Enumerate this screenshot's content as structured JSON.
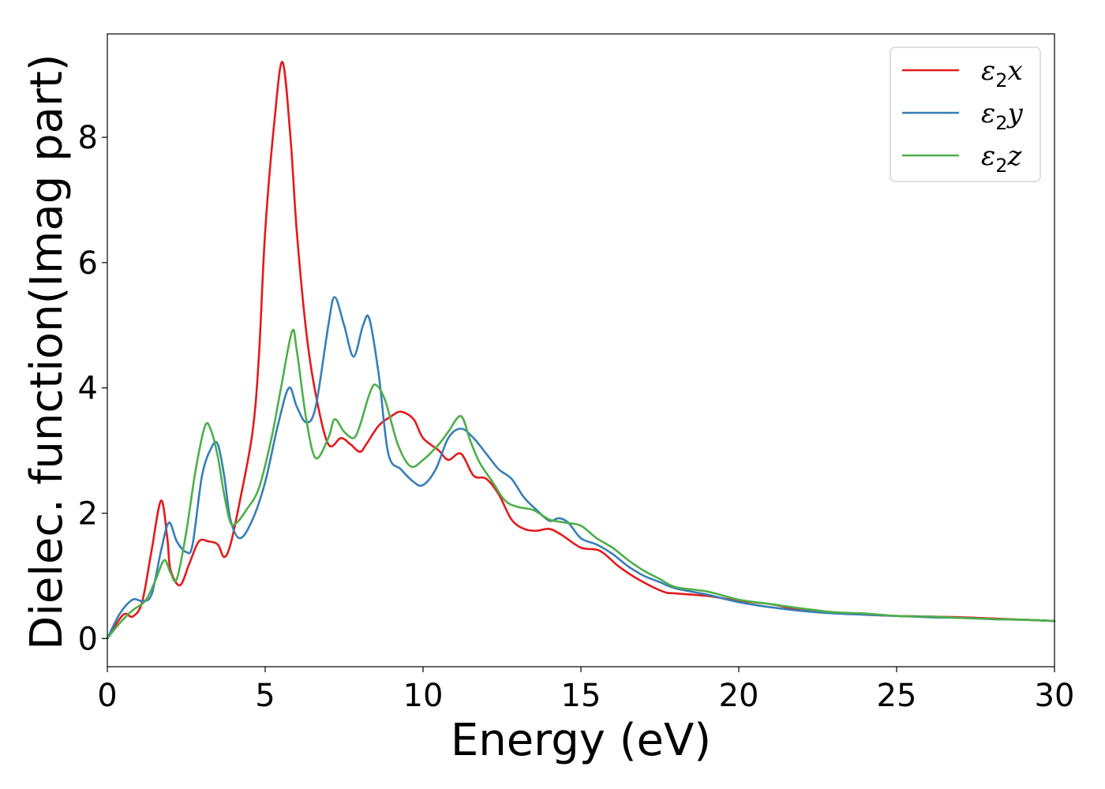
{
  "chart_data": {
    "type": "line",
    "title": "",
    "xlabel": "Energy (eV)",
    "ylabel": "Dielec. function(Imag part)",
    "xlim": [
      0,
      30
    ],
    "ylim": [
      -0.45,
      9.65
    ],
    "xticks": [
      0,
      5,
      10,
      15,
      20,
      25,
      30
    ],
    "yticks": [
      0,
      2,
      4,
      6,
      8
    ],
    "grid": false,
    "legend_position": "top-right",
    "series": [
      {
        "name": "ε2x",
        "color": "#e41a1c",
        "x": [
          0,
          0.5,
          0.8,
          1.1,
          1.4,
          1.7,
          1.9,
          2.0,
          2.3,
          2.6,
          2.9,
          3.2,
          3.5,
          3.7,
          3.9,
          4.2,
          4.6,
          4.8,
          5.0,
          5.3,
          5.55,
          5.8,
          6.0,
          6.3,
          6.6,
          7.0,
          7.4,
          7.7,
          8.0,
          8.2,
          8.6,
          9.0,
          9.3,
          9.7,
          10.0,
          10.5,
          10.8,
          11.2,
          11.6,
          12.0,
          12.4,
          12.8,
          13.2,
          13.6,
          14.0,
          14.4,
          15.0,
          15.6,
          16.2,
          16.8,
          17.6,
          18.0,
          19.0,
          20.0,
          21.0,
          22.0,
          23.0,
          24.0,
          25.0,
          26.0,
          27.0,
          28.0,
          29.0,
          30.0
        ],
        "y": [
          0,
          0.38,
          0.35,
          0.58,
          1.4,
          2.2,
          1.6,
          1.1,
          0.85,
          1.2,
          1.55,
          1.55,
          1.5,
          1.3,
          1.5,
          2.2,
          3.3,
          4.5,
          6.5,
          8.3,
          9.2,
          8.0,
          6.5,
          4.9,
          3.9,
          3.1,
          3.2,
          3.1,
          2.98,
          3.1,
          3.4,
          3.55,
          3.62,
          3.5,
          3.2,
          3.0,
          2.85,
          2.95,
          2.6,
          2.55,
          2.3,
          1.9,
          1.75,
          1.72,
          1.75,
          1.65,
          1.45,
          1.4,
          1.15,
          0.95,
          0.75,
          0.72,
          0.68,
          0.6,
          0.55,
          0.45,
          0.42,
          0.38,
          0.36,
          0.35,
          0.34,
          0.32,
          0.3,
          0.28
        ]
      },
      {
        "name": "ε2y",
        "color": "#377eb8",
        "x": [
          0,
          0.4,
          0.8,
          1.1,
          1.4,
          1.7,
          1.95,
          2.2,
          2.5,
          2.7,
          3.0,
          3.3,
          3.5,
          3.7,
          3.9,
          4.2,
          4.6,
          5.0,
          5.4,
          5.75,
          6.0,
          6.3,
          6.6,
          7.0,
          7.2,
          7.5,
          7.8,
          8.1,
          8.3,
          8.6,
          8.9,
          9.3,
          9.7,
          10.0,
          10.4,
          10.8,
          11.2,
          11.6,
          12.0,
          12.4,
          12.8,
          13.2,
          13.6,
          14.0,
          14.3,
          14.6,
          15.0,
          15.5,
          16.0,
          16.5,
          17.0,
          17.5,
          18.0,
          19.0,
          20.0,
          21.0,
          22.0,
          23.0,
          24.0,
          25.0,
          26.0,
          27.0,
          28.0,
          29.0,
          30.0
        ],
        "y": [
          0,
          0.4,
          0.62,
          0.6,
          0.7,
          1.4,
          1.85,
          1.55,
          1.38,
          1.5,
          2.6,
          3.05,
          3.1,
          2.6,
          1.9,
          1.6,
          1.9,
          2.5,
          3.4,
          4.0,
          3.7,
          3.45,
          3.7,
          5.0,
          5.45,
          5.0,
          4.5,
          5.0,
          5.1,
          4.2,
          2.95,
          2.7,
          2.5,
          2.45,
          2.7,
          3.2,
          3.35,
          3.2,
          2.95,
          2.7,
          2.55,
          2.25,
          2.05,
          1.88,
          1.92,
          1.85,
          1.6,
          1.5,
          1.35,
          1.15,
          1.0,
          0.9,
          0.8,
          0.7,
          0.58,
          0.5,
          0.44,
          0.4,
          0.38,
          0.36,
          0.34,
          0.33,
          0.31,
          0.3,
          0.28
        ]
      },
      {
        "name": "ε2z",
        "color": "#4daf4a",
        "x": [
          0,
          0.4,
          0.8,
          1.2,
          1.5,
          1.8,
          2.0,
          2.2,
          2.5,
          2.8,
          3.1,
          3.3,
          3.5,
          3.7,
          3.9,
          4.1,
          4.4,
          4.8,
          5.2,
          5.5,
          5.85,
          6.0,
          6.3,
          6.6,
          7.0,
          7.2,
          7.5,
          7.8,
          8.0,
          8.3,
          8.5,
          8.8,
          9.2,
          9.6,
          10.0,
          10.5,
          10.8,
          11.2,
          11.5,
          11.8,
          12.2,
          12.6,
          13.0,
          13.5,
          14.0,
          14.5,
          15.0,
          15.5,
          16.0,
          16.5,
          17.0,
          17.5,
          18.0,
          19.0,
          20.0,
          21.0,
          22.0,
          23.0,
          24.0,
          25.0,
          26.0,
          27.0,
          28.0,
          29.0,
          30.0
        ],
        "y": [
          0,
          0.25,
          0.45,
          0.6,
          0.9,
          1.25,
          1.05,
          0.95,
          1.7,
          2.7,
          3.4,
          3.3,
          2.9,
          2.3,
          1.85,
          1.85,
          2.05,
          2.4,
          3.2,
          4.0,
          4.9,
          4.6,
          3.5,
          2.88,
          3.2,
          3.5,
          3.3,
          3.2,
          3.4,
          3.9,
          4.05,
          3.8,
          3.1,
          2.75,
          2.85,
          3.1,
          3.3,
          3.55,
          3.15,
          2.8,
          2.5,
          2.2,
          2.1,
          2.05,
          1.9,
          1.85,
          1.8,
          1.6,
          1.45,
          1.25,
          1.08,
          0.95,
          0.82,
          0.75,
          0.62,
          0.55,
          0.48,
          0.42,
          0.4,
          0.36,
          0.35,
          0.33,
          0.31,
          0.3,
          0.28
        ]
      }
    ]
  }
}
